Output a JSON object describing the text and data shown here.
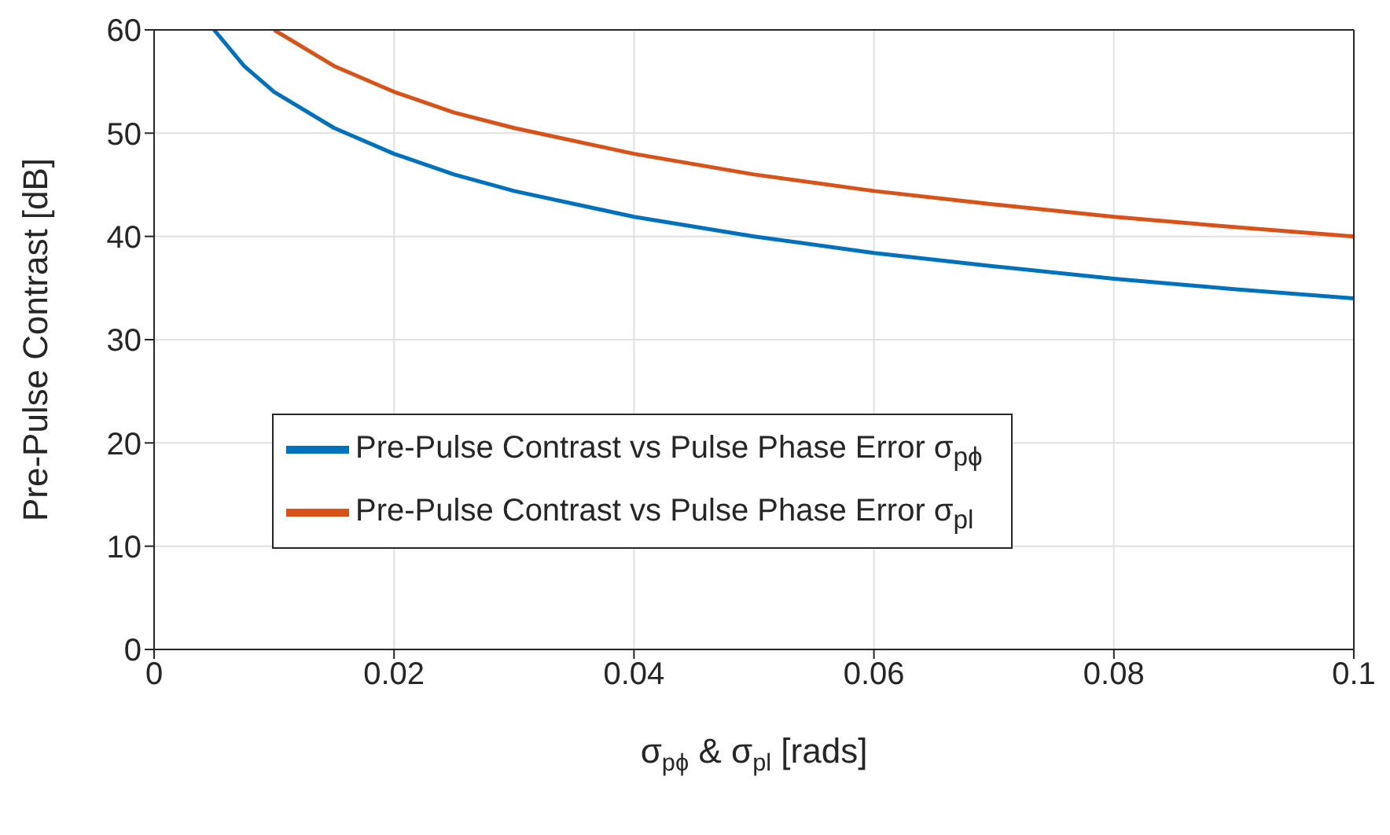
{
  "chart_data": {
    "type": "line",
    "xlabel": "σ$_{pϕ}$ & σ$_{pl}$ [rads]",
    "ylabel": "Pre-Pulse Contrast [dB]",
    "xlim": [
      0,
      0.1
    ],
    "xticks": [
      0,
      0.02,
      0.04,
      0.06,
      0.08,
      0.1
    ],
    "ylim": [
      0,
      60
    ],
    "yticks": [
      0,
      10,
      20,
      30,
      40,
      50,
      60
    ],
    "grid": true,
    "legend": "left",
    "marker": "none",
    "line_style": "solid",
    "series": [
      {
        "name": "Pre-Pulse Contrast vs Pulse Phase Error σ$_{pϕ}$",
        "color": "#0072bd",
        "x": [
          0.005,
          0.0075,
          0.01,
          0.015,
          0.02,
          0.025,
          0.03,
          0.04,
          0.05,
          0.06,
          0.07,
          0.08,
          0.09,
          0.1
        ],
        "values": [
          60,
          56.5,
          54,
          50.5,
          48,
          46,
          44.4,
          41.9,
          40,
          38.4,
          37.1,
          35.9,
          34.9,
          34
        ]
      },
      {
        "name": "Pre-Pulse Contrast vs Pulse Phase Error σ$_{pl}$",
        "color": "#d95319",
        "x": [
          0.01,
          0.015,
          0.02,
          0.025,
          0.03,
          0.04,
          0.05,
          0.06,
          0.07,
          0.08,
          0.09,
          0.1
        ],
        "values": [
          60,
          56.5,
          54,
          52,
          50.5,
          48,
          46,
          44.4,
          43.1,
          41.9,
          40.9,
          40
        ]
      }
    ]
  }
}
